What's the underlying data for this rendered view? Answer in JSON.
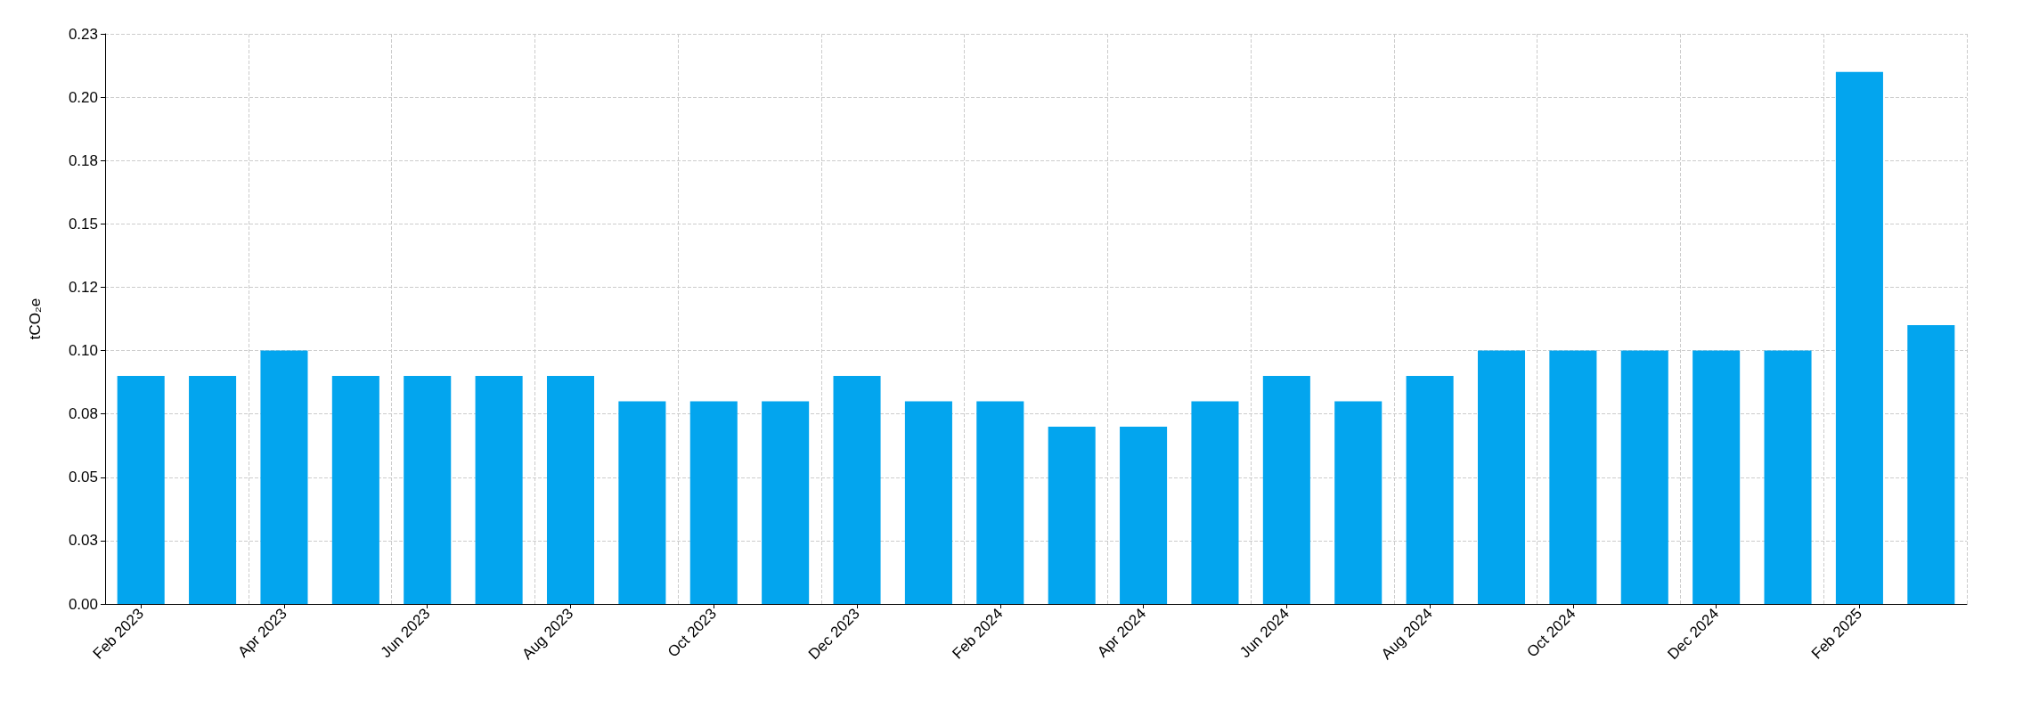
{
  "chart_data": {
    "type": "bar",
    "ylabel": "tCO₂e",
    "categories": [
      "Feb 2023",
      null,
      "Apr 2023",
      null,
      "Jun 2023",
      null,
      "Aug 2023",
      null,
      "Oct 2023",
      null,
      "Dec 2023",
      null,
      "Feb 2024",
      null,
      "Apr 2024",
      null,
      "Jun 2024",
      null,
      "Aug 2024",
      null,
      "Oct 2024",
      null,
      "Dec 2024",
      null,
      "Feb 2025",
      null
    ],
    "values": [
      0.09,
      0.09,
      0.1,
      0.09,
      0.09,
      0.09,
      0.09,
      0.08,
      0.08,
      0.08,
      0.09,
      0.08,
      0.08,
      0.07,
      0.07,
      0.08,
      0.09,
      0.08,
      0.09,
      0.1,
      0.1,
      0.1,
      0.1,
      0.1,
      0.21,
      0.11
    ],
    "color": "#03a5ee",
    "ylim": [
      0,
      0.225
    ],
    "yticks": [
      {
        "value": 0,
        "label": "0.00"
      },
      {
        "value": 0.025,
        "label": "0.03"
      },
      {
        "value": 0.05,
        "label": "0.05"
      },
      {
        "value": 0.075,
        "label": "0.08"
      },
      {
        "value": 0.1,
        "label": "0.10"
      },
      {
        "value": 0.125,
        "label": "0.12"
      },
      {
        "value": 0.15,
        "label": "0.15"
      },
      {
        "value": 0.175,
        "label": "0.18"
      },
      {
        "value": 0.2,
        "label": "0.20"
      },
      {
        "value": 0.225,
        "label": "0.23"
      }
    ],
    "grid": true
  }
}
